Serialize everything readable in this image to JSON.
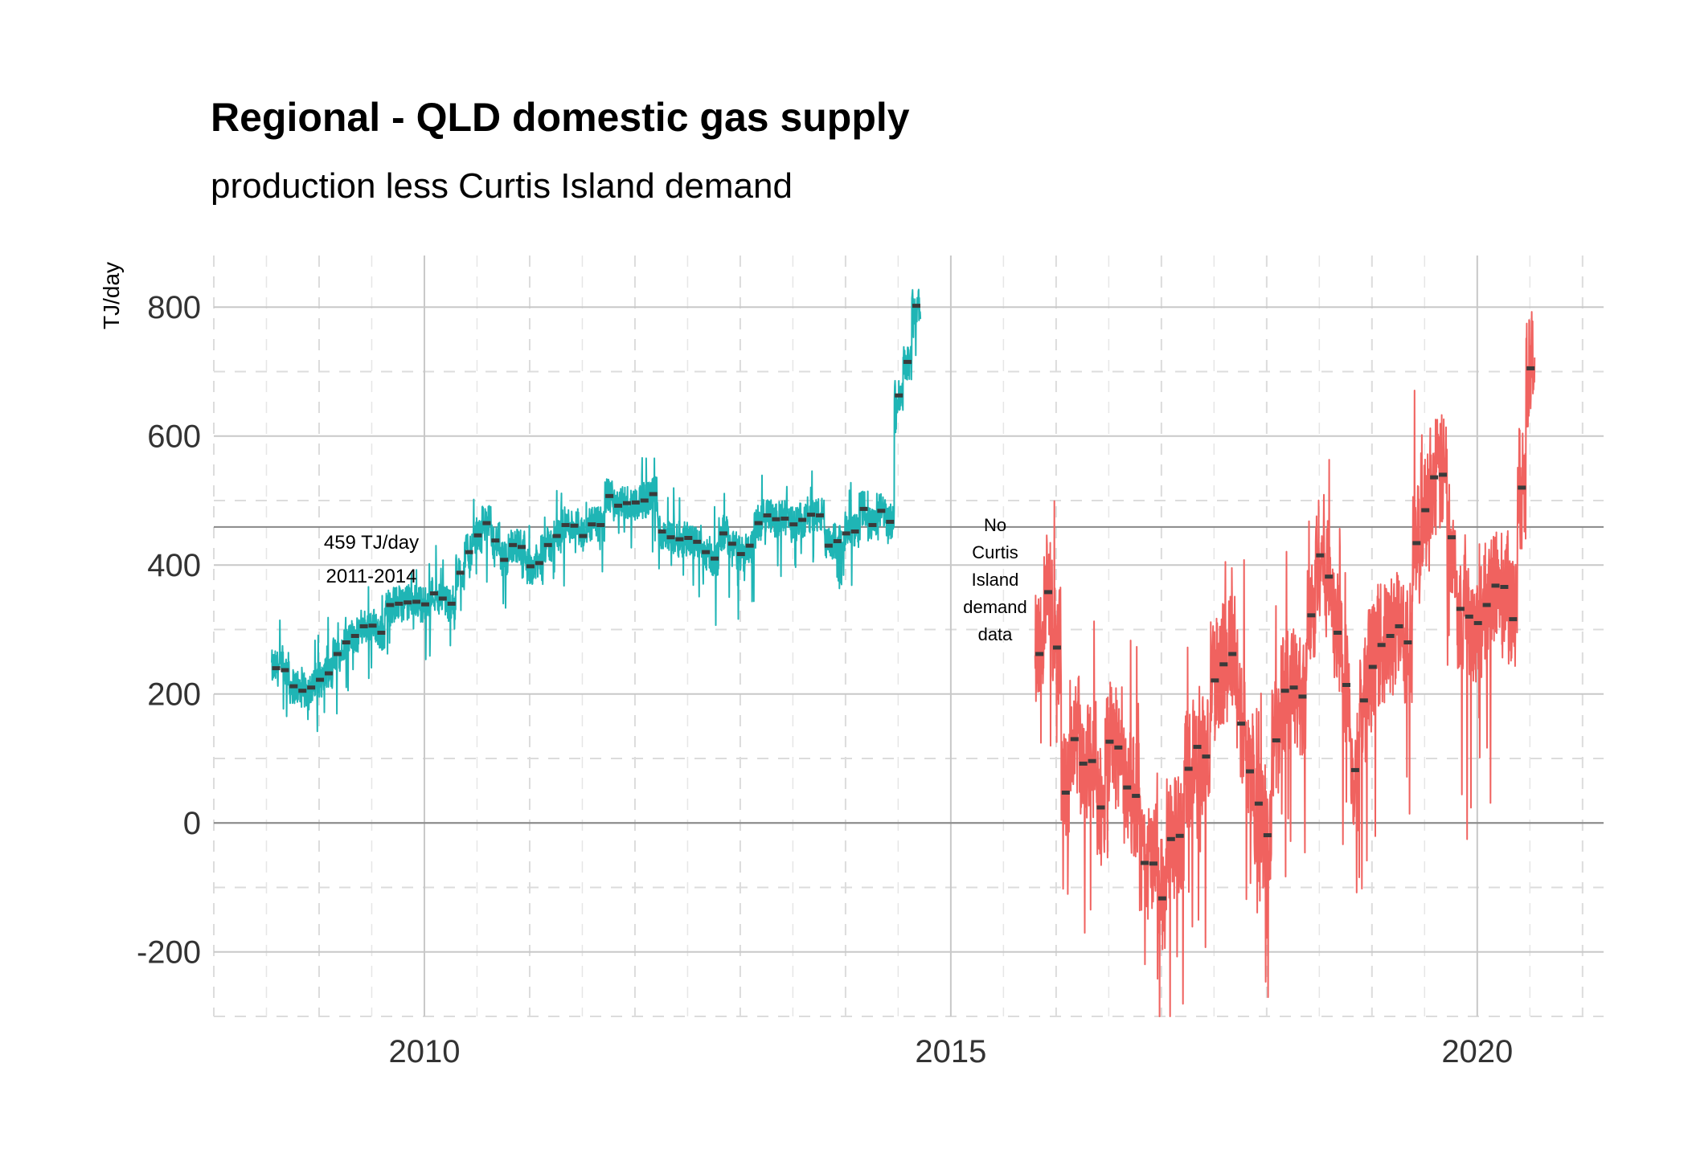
{
  "chart_data": {
    "type": "line",
    "title": "Regional - QLD domestic gas supply",
    "subtitle": "production less Curtis Island demand",
    "ylabel": "TJ/day",
    "xlabel": "",
    "xlim": [
      2008.0,
      2021.2
    ],
    "ylim": [
      -300,
      880
    ],
    "x_ticks": [
      2010,
      2015,
      2020
    ],
    "x_tick_labels": [
      "2010",
      "2015",
      "2020"
    ],
    "y_ticks": [
      -200,
      0,
      200,
      400,
      600,
      800
    ],
    "y_tick_labels": [
      "-200",
      "0",
      "200",
      "400",
      "600",
      "800"
    ],
    "grid": true,
    "hline": {
      "value": 459,
      "label": "459 TJ/day",
      "sublabel": "2011-2014"
    },
    "gap_annotation": [
      "No",
      "Curtis",
      "Island",
      "demand",
      "data"
    ],
    "series": [
      {
        "color": "#1fb5b5",
        "x_start": 2008.55,
        "x_step": 0.0833,
        "monthly_means": [
          240,
          237,
          212,
          205,
          210,
          222,
          232,
          262,
          280,
          290,
          305,
          306,
          295,
          338,
          340,
          342,
          343,
          339,
          356,
          348,
          340,
          388,
          420,
          446,
          465,
          438,
          408,
          431,
          428,
          398,
          403,
          431,
          445,
          462,
          461,
          445,
          463,
          462,
          507,
          492,
          496,
          497,
          500,
          510,
          452,
          443,
          440,
          442,
          436,
          420,
          410,
          449,
          433,
          417,
          430,
          465,
          477,
          471,
          472,
          463,
          470,
          478,
          477,
          430,
          437,
          449,
          452,
          487,
          462,
          484,
          467,
          663,
          715,
          802
        ]
      },
      {
        "color": "#f0625f",
        "x_start": 2015.8,
        "x_step": 0.0833,
        "monthly_means": [
          262,
          358,
          272,
          47,
          130,
          92,
          96,
          24,
          126,
          117,
          55,
          42,
          -62,
          -63,
          -117,
          -25,
          -20,
          84,
          118,
          103,
          221,
          246,
          262,
          154,
          80,
          30,
          -19,
          128,
          205,
          210,
          196,
          322,
          415,
          382,
          295,
          214,
          82,
          190,
          242,
          276,
          290,
          305,
          280,
          434,
          485,
          536,
          540,
          443,
          332,
          320,
          310,
          338,
          368,
          366,
          316,
          520,
          705
        ]
      }
    ]
  }
}
